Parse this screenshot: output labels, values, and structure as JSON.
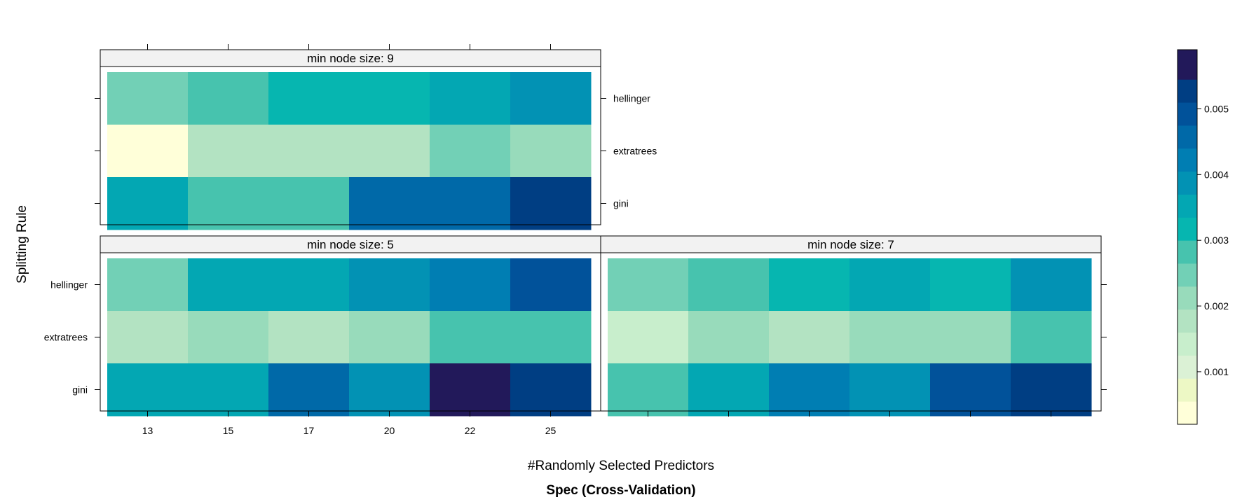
{
  "chart_data": {
    "type": "heatmap",
    "title": "Spec (Cross-Validation)",
    "xlabel": "#Randomly Selected Predictors",
    "ylabel": "Splitting Rule",
    "x": [
      "13",
      "15",
      "17",
      "20",
      "22",
      "25"
    ],
    "y": [
      "gini",
      "extratrees",
      "hellinger"
    ],
    "colorbar": {
      "range": [
        0.0002,
        0.0059
      ],
      "ticks": [
        "0.001",
        "0.002",
        "0.003",
        "0.004",
        "0.005"
      ],
      "tick_values": [
        0.001,
        0.002,
        0.003,
        0.004,
        0.005
      ],
      "colors": [
        "#FFFFD9",
        "#EDF8C5",
        "#DBF1D5",
        "#C8EECC",
        "#B3E3C2",
        "#98DBBB",
        "#72D0B6",
        "#47C3AE",
        "#06B6B0",
        "#03A7B3",
        "#0292B4",
        "#007EB3",
        "#0069A8",
        "#01529A",
        "#003E83",
        "#22195A"
      ],
      "color_breaks": [
        0.0002,
        0.00055,
        0.0009,
        0.00125,
        0.0016,
        0.00195,
        0.0023,
        0.00265,
        0.003,
        0.00335,
        0.0037,
        0.00405,
        0.0044,
        0.00475,
        0.0051,
        0.00545,
        0.0059
      ]
    },
    "panels": [
      {
        "strip": "min node size: 9",
        "values": {
          "hellinger": [
            0.0025,
            0.0029,
            0.0032,
            0.0032,
            0.0035,
            0.0038
          ],
          "extratrees": [
            0.0004,
            0.0017,
            0.0017,
            0.0019,
            0.0025,
            0.002
          ],
          "gini": [
            0.0035,
            0.0029,
            0.0029,
            0.0045,
            0.0045,
            0.0052
          ]
        }
      },
      {
        "strip": "min node size: 5",
        "values": {
          "hellinger": [
            0.0025,
            0.0035,
            0.0035,
            0.0038,
            0.0042,
            0.0049
          ],
          "extratrees": [
            0.0016,
            0.0022,
            0.0017,
            0.0022,
            0.0029,
            0.0029
          ],
          "gini": [
            0.0035,
            0.0035,
            0.0045,
            0.0038,
            0.0057,
            0.0052
          ]
        }
      },
      {
        "strip": "min node size: 7",
        "values": {
          "hellinger": [
            0.0025,
            0.0029,
            0.0032,
            0.0035,
            0.0032,
            0.0038
          ],
          "extratrees": [
            0.0013,
            0.002,
            0.0017,
            0.0022,
            0.0022,
            0.0029
          ],
          "gini": [
            0.0029,
            0.0035,
            0.0042,
            0.0038,
            0.0049,
            0.0052
          ]
        }
      }
    ]
  }
}
